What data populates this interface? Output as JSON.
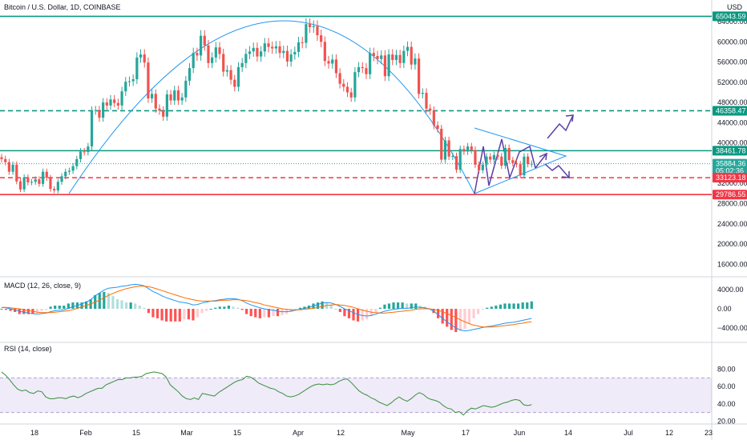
{
  "title": "Bitcoin / U.S. Dollar, 1D, COINBASE",
  "colors": {
    "up": "#26a69a",
    "down": "#ef5350",
    "teal_line": "#089981",
    "red_line": "#f23645",
    "curve": "#2196f3",
    "purple": "#5b3fa6",
    "rsi_band": "#7e57c2",
    "rsi_line": "#388e3c",
    "macd_line": "#2196f3",
    "signal_line": "#ff6d00"
  },
  "chart_data": [
    {
      "type": "candlestick",
      "title": "Bitcoin / U.S. Dollar, 1D, COINBASE",
      "ylabel": "USD",
      "ylim": [
        12000,
        68000
      ],
      "y_ticks": [
        "68000.00",
        "64000.00",
        "60000.00",
        "56000.00",
        "52000.00",
        "48000.00",
        "44000.00",
        "40000.00",
        "36000.00",
        "32000.00",
        "28000.00",
        "24000.00",
        "20000.00",
        "16000.00"
      ],
      "x_ticks": [
        "18",
        "Feb",
        "15",
        "Mar",
        "15",
        "Apr",
        "12",
        "May",
        "17",
        "Jun",
        "14",
        "Jul",
        "12",
        "23"
      ],
      "close_prices": [
        36800,
        36200,
        34300,
        35700,
        32400,
        30800,
        33200,
        32200,
        32300,
        32800,
        31900,
        34300,
        33100,
        30900,
        30600,
        32300,
        33400,
        34300,
        34500,
        35400,
        36800,
        38300,
        38200,
        39300,
        46400,
        46500,
        45000,
        48000,
        47400,
        48600,
        47900,
        47400,
        50200,
        52100,
        52200,
        52600,
        56900,
        57500,
        55900,
        48800,
        49700,
        46800,
        46400,
        45200,
        49600,
        48400,
        50400,
        48400,
        49000,
        52300,
        54800,
        57800,
        57300,
        61200,
        59300,
        55800,
        56900,
        58900,
        57600,
        54100,
        54400,
        52500,
        51100,
        55000,
        55800,
        57600,
        58100,
        58800,
        57100,
        58100,
        59700,
        59000,
        58700,
        59100,
        57800,
        58200,
        56100,
        57500,
        58000,
        59900,
        59800,
        63500,
        62900,
        63100,
        61300,
        60000,
        56200,
        55700,
        56500,
        53800,
        51700,
        51100,
        50000,
        49000,
        54000,
        55000,
        54800,
        53600,
        57800,
        57200,
        56600,
        57300,
        53200,
        57500,
        56400,
        57400,
        55800,
        58200,
        59000,
        55500,
        56700,
        49700,
        49900,
        46800,
        46400,
        43500,
        42800,
        36700,
        40500,
        37300,
        37400,
        34700,
        38800,
        38300,
        39300,
        38600,
        35700,
        34600,
        35700,
        37300,
        36700,
        37600,
        37300,
        35500,
        39000,
        36600,
        36000,
        35800,
        33600,
        37300,
        35800,
        35884.36
      ],
      "horizontal_levels": [
        {
          "label": "65043.59",
          "value": 65043.59,
          "color": "#089981",
          "style": "solid"
        },
        {
          "label": "46358.47",
          "value": 46358.47,
          "color": "#089981",
          "style": "dashed"
        },
        {
          "label": "38461.78",
          "value": 38461.78,
          "color": "#089981",
          "style": "solid"
        },
        {
          "label": "35884.36",
          "value": 35884.36,
          "color": "#26a69a",
          "style": "dotted",
          "sublabel": "05:02:36"
        },
        {
          "label": "33123.18",
          "value": 33123.18,
          "color": "#f23645",
          "style": "dashed"
        },
        {
          "label": "29786.55",
          "value": 29786.55,
          "color": "#f23645",
          "style": "solid"
        }
      ]
    },
    {
      "type": "histogram-line",
      "title": "MACD (12, 26, close, 9)",
      "ylim": [
        -6000,
        6000
      ],
      "y_ticks": [
        "4000.00",
        "0.00",
        "−4000.00"
      ],
      "macd": [
        300,
        200,
        0,
        -200,
        -500,
        -700,
        -900,
        -1000,
        -1100,
        -1000,
        -900,
        -600,
        -400,
        -300,
        -200,
        100,
        400,
        700,
        1000,
        1400,
        1900,
        2700,
        3300,
        3900,
        4300,
        4400,
        4500,
        4700,
        4800,
        5000,
        5100,
        5000,
        4800,
        4200,
        3600,
        3200,
        2700,
        2300,
        2000,
        1700,
        1400,
        1300,
        1100,
        800,
        900,
        1200,
        1400,
        1600,
        1700,
        1900,
        2000,
        2100,
        2100,
        2000,
        1700,
        1200,
        800,
        500,
        200,
        0,
        -200,
        -300,
        -500,
        -600,
        -600,
        -500,
        -300,
        -100,
        100,
        300,
        600,
        900,
        1200,
        1300,
        1200,
        900,
        500,
        0,
        -400,
        -800,
        -1200,
        -1400,
        -1500,
        -1400,
        -1100,
        -800,
        -500,
        -300,
        -100,
        0,
        100,
        100,
        200,
        400,
        300,
        200,
        0,
        -500,
        -1200,
        -2000,
        -2700,
        -3400,
        -4000,
        -4400,
        -4600,
        -4500,
        -4300,
        -4100,
        -3900,
        -3700,
        -3600,
        -3400,
        -3200,
        -3000,
        -2900,
        -2800,
        -2600,
        -2400,
        -2200,
        -2000
      ],
      "signal": [
        300,
        300,
        200,
        100,
        0,
        -200,
        -400,
        -500,
        -700,
        -800,
        -800,
        -800,
        -700,
        -600,
        -500,
        -400,
        -200,
        100,
        400,
        700,
        1000,
        1400,
        1800,
        2300,
        2800,
        3200,
        3600,
        3900,
        4200,
        4400,
        4600,
        4700,
        4700,
        4600,
        4400,
        4100,
        3800,
        3500,
        3200,
        2900,
        2600,
        2300,
        2100,
        1900,
        1700,
        1600,
        1600,
        1600,
        1600,
        1700,
        1800,
        1800,
        1900,
        1900,
        1800,
        1700,
        1500,
        1300,
        1100,
        800,
        600,
        400,
        200,
        0,
        -100,
        -200,
        -200,
        -200,
        -100,
        0,
        100,
        300,
        500,
        700,
        800,
        900,
        800,
        700,
        500,
        300,
        0,
        -300,
        -500,
        -700,
        -800,
        -900,
        -900,
        -800,
        -700,
        -600,
        -500,
        -400,
        -300,
        -100,
        0,
        0,
        0,
        -100,
        -300,
        -600,
        -1000,
        -1400,
        -1800,
        -2300,
        -2700,
        -3100,
        -3400,
        -3600,
        -3800,
        -3800,
        -3800,
        -3700,
        -3600,
        -3500,
        -3400,
        -3300,
        -3100,
        -3000,
        -2800,
        -2700
      ]
    },
    {
      "type": "line",
      "title": "RSI (14, close)",
      "ylim": [
        15,
        90
      ],
      "y_ticks": [
        "80.00",
        "60.00",
        "40.00",
        "20.00"
      ],
      "band": [
        30,
        70
      ],
      "values": [
        77,
        73,
        68,
        62,
        57,
        55,
        56,
        53,
        52,
        55,
        54,
        48,
        46,
        46,
        47,
        47,
        46,
        48,
        49,
        47,
        49,
        52,
        54,
        56,
        58,
        58,
        62,
        64,
        66,
        68,
        68,
        70,
        70,
        71,
        71,
        72,
        75,
        76,
        77,
        76,
        75,
        71,
        62,
        58,
        54,
        49,
        46,
        45,
        47,
        45,
        52,
        51,
        50,
        49,
        53,
        56,
        59,
        62,
        65,
        67,
        68,
        72,
        71,
        68,
        64,
        62,
        60,
        58,
        57,
        54,
        52,
        49,
        48,
        49,
        51,
        54,
        57,
        60,
        62,
        63,
        62,
        63,
        62,
        63,
        66,
        68,
        69,
        65,
        60,
        55,
        52,
        50,
        47,
        45,
        42,
        40,
        38,
        41,
        45,
        48,
        45,
        43,
        46,
        50,
        53,
        51,
        47,
        45,
        44,
        42,
        38,
        35,
        34,
        30,
        31,
        27,
        32,
        35,
        34,
        36,
        38,
        37,
        36,
        37,
        39,
        41,
        42,
        44,
        45,
        44,
        39,
        38,
        39
      ]
    }
  ]
}
